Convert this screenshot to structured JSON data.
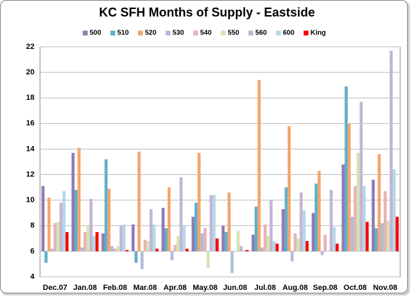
{
  "chart_data": {
    "type": "bar",
    "title": "KC SFH Months of Supply - Eastside",
    "categories": [
      "Dec.07",
      "Jan.08",
      "Feb.08",
      "Mar.08",
      "Apr.08",
      "May.08",
      "Jun.08",
      "Jul.08",
      "Aug.08",
      "Sep.08",
      "Oct.08",
      "Nov.08"
    ],
    "series": [
      {
        "name": "500",
        "color": "#8e7cb4",
        "values": [
          11.1,
          13.7,
          7.4,
          8.1,
          9.4,
          8.7,
          8.0,
          7.3,
          9.3,
          9.0,
          12.8,
          11.6
        ]
      },
      {
        "name": "510",
        "color": "#5fb0c9",
        "values": [
          5.1,
          10.8,
          13.2,
          5.1,
          7.8,
          9.8,
          7.5,
          9.5,
          11.0,
          11.3,
          18.9,
          7.8
        ]
      },
      {
        "name": "520",
        "color": "#f5a46a",
        "values": [
          10.2,
          14.1,
          10.9,
          13.8,
          11.0,
          13.7,
          10.6,
          19.4,
          15.8,
          12.3,
          16.0,
          13.6
        ]
      },
      {
        "name": "530",
        "color": "#b0bcda",
        "values": [
          6.2,
          6.3,
          6.4,
          4.6,
          5.3,
          7.4,
          4.3,
          6.3,
          5.2,
          5.7,
          8.7,
          8.2
        ]
      },
      {
        "name": "540",
        "color": "#e6b4b4",
        "values": [
          8.2,
          7.5,
          6.2,
          6.9,
          6.5,
          7.8,
          6.0,
          8.1,
          7.4,
          7.3,
          11.1,
          10.7
        ]
      },
      {
        "name": "550",
        "color": "#d4e4b4",
        "values": [
          8.3,
          8.0,
          6.4,
          6.8,
          7.2,
          4.7,
          7.6,
          7.2,
          7.0,
          6.0,
          13.7,
          8.4
        ]
      },
      {
        "name": "560",
        "color": "#c4b4d4",
        "values": [
          9.8,
          10.1,
          8.0,
          9.3,
          11.8,
          10.4,
          6.4,
          10.0,
          10.6,
          10.8,
          17.7,
          21.7
        ]
      },
      {
        "name": "600",
        "color": "#b4d8e8",
        "values": [
          10.7,
          7.2,
          8.1,
          8.1,
          8.0,
          10.4,
          6.1,
          6.8,
          9.2,
          7.9,
          11.1,
          12.4
        ]
      },
      {
        "name": "King",
        "color": "#ff0000",
        "values": [
          7.5,
          7.5,
          6.1,
          6.2,
          6.2,
          7.0,
          6.1,
          6.6,
          6.8,
          6.6,
          8.3,
          8.7
        ]
      }
    ],
    "ylim": [
      4,
      22
    ],
    "yticks": [
      4,
      6,
      8,
      10,
      12,
      14,
      16,
      18,
      20,
      22
    ],
    "bar_base": 6,
    "grid": true,
    "legend": "top"
  }
}
